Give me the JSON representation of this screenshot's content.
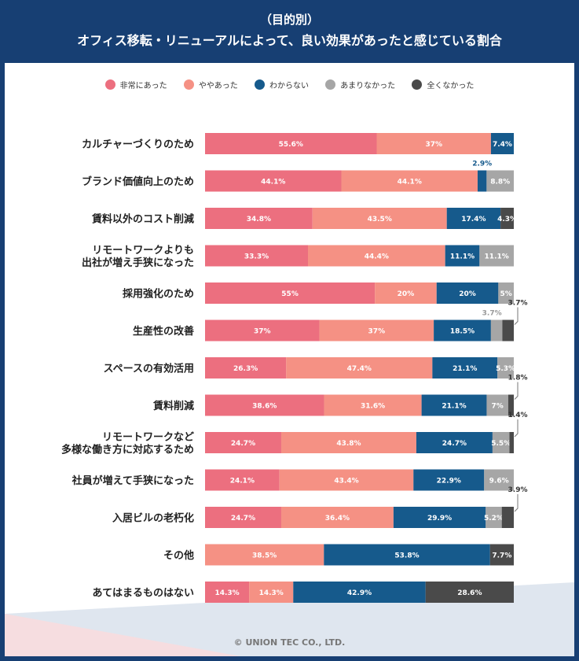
{
  "header": {
    "title_line1": "（目的別）",
    "title_line2": "オフィス移転・リニューアルによって、良い効果があったと感じている割合"
  },
  "colors": {
    "series": [
      "#ec6f7f",
      "#f59184",
      "#165a8c",
      "#a6a6a6",
      "#4a4a4a"
    ],
    "header_bg": "#173f73"
  },
  "footer": {
    "copyright": "© UNION TEC CO., LTD."
  },
  "chart_data": {
    "type": "bar",
    "orientation": "horizontal",
    "stacked": true,
    "title": "（目的別）オフィス移転・リニューアルによって、良い効果があったと感じている割合",
    "legend_position": "top",
    "xlim": [
      0,
      100
    ],
    "categories": [
      "カルチャーづくりのため",
      "ブランド価値向上のため",
      "賃料以外のコスト削減",
      "リモートワークよりも\n出社が増え手狭になった",
      "採用強化のため",
      "生産性の改善",
      "スペースの有効活用",
      "賃料削減",
      "リモートワークなど\n多様な働き方に対応するため",
      "社員が増えて手狭になった",
      "入居ビルの老朽化",
      "その他",
      "あてはまるものはない"
    ],
    "series": [
      {
        "name": "非常にあった",
        "values": [
          55.6,
          44.1,
          34.8,
          33.3,
          55,
          37,
          26.3,
          38.6,
          24.7,
          24.1,
          24.7,
          0,
          14.3
        ],
        "labels": [
          "55.6%",
          "44.1%",
          "34.8%",
          "33.3%",
          "55%",
          "37%",
          "26.3%",
          "38.6%",
          "24.7%",
          "24.1%",
          "24.7%",
          "",
          "14.3%"
        ]
      },
      {
        "name": "ややあった",
        "values": [
          37,
          44.1,
          43.5,
          44.4,
          20,
          37,
          47.4,
          31.6,
          43.8,
          43.4,
          36.4,
          38.5,
          14.3
        ],
        "labels": [
          "37%",
          "44.1%",
          "43.5%",
          "44.4%",
          "20%",
          "37%",
          "47.4%",
          "31.6%",
          "43.8%",
          "43.4%",
          "36.4%",
          "38.5%",
          "14.3%"
        ]
      },
      {
        "name": "わからない",
        "values": [
          7.4,
          2.9,
          17.4,
          11.1,
          20,
          18.5,
          21.1,
          21.1,
          24.7,
          22.9,
          29.9,
          53.8,
          42.9
        ],
        "labels": [
          "7.4%",
          "2.9%",
          "17.4%",
          "11.1%",
          "20%",
          "18.5%",
          "21.1%",
          "21.1%",
          "24.7%",
          "22.9%",
          "29.9%",
          "53.8%",
          "42.9%"
        ]
      },
      {
        "name": "あまりなかった",
        "values": [
          0,
          8.8,
          0,
          11.1,
          5,
          3.7,
          5.3,
          7,
          5.5,
          9.6,
          5.2,
          0,
          0
        ],
        "labels": [
          "",
          "8.8%",
          "",
          "11.1%",
          "5%",
          "3.7%",
          "5.3%",
          "7%",
          "5.5%",
          "9.6%",
          "5.2%",
          "",
          ""
        ]
      },
      {
        "name": "全くなかった",
        "values": [
          0,
          0,
          4.3,
          0,
          0,
          3.7,
          0,
          1.8,
          1.4,
          0,
          3.9,
          7.7,
          28.6
        ],
        "labels": [
          "",
          "",
          "4.3%",
          "",
          "",
          "3.7%",
          "",
          "1.8%",
          "1.4%",
          "",
          "3.9%",
          "7.7%",
          "28.6%"
        ]
      }
    ]
  }
}
